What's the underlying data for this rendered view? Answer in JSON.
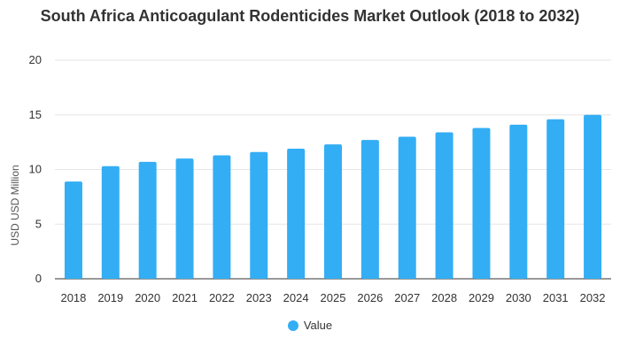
{
  "chart_data": {
    "type": "bar",
    "title": "South Africa Anticoagulant Rodenticides Market Outlook (2018 to 2032)",
    "ylabel": "USD USD Million",
    "xlabel": "",
    "ylim": [
      0,
      20
    ],
    "yticks": [
      0,
      5,
      10,
      15,
      20
    ],
    "grid": true,
    "legend_position": "bottom",
    "categories": [
      "2018",
      "2019",
      "2020",
      "2021",
      "2022",
      "2023",
      "2024",
      "2025",
      "2026",
      "2027",
      "2028",
      "2029",
      "2030",
      "2031",
      "2032"
    ],
    "series": [
      {
        "name": "Value",
        "color": "#33aef5",
        "values": [
          8.9,
          10.3,
          10.7,
          11.0,
          11.3,
          11.6,
          11.9,
          12.3,
          12.7,
          13.0,
          13.4,
          13.8,
          14.1,
          14.6,
          15.0
        ]
      }
    ]
  }
}
